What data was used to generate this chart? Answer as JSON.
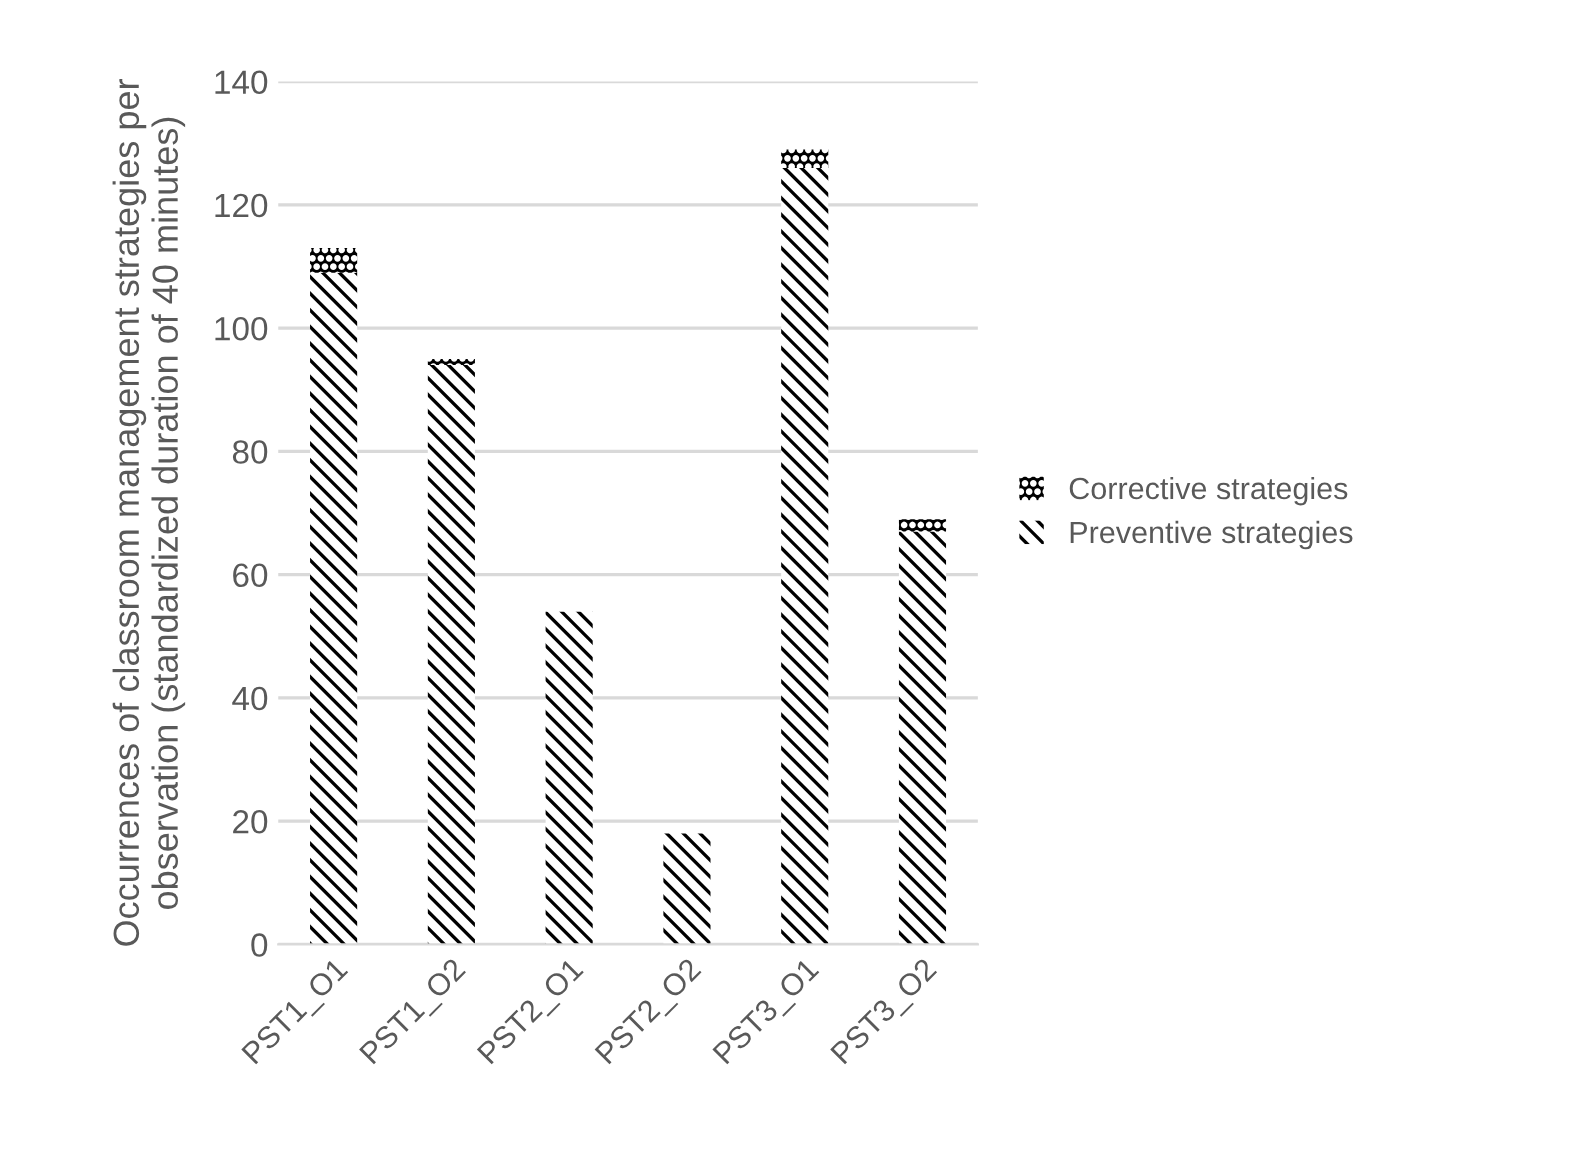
{
  "chart_data": {
    "type": "bar",
    "stacked": true,
    "ylabel": "Occurrences of classroom management strategies per observation (standardized duration of 40 minutes)",
    "categories": [
      "PST1_O1",
      "PST1_O2",
      "PST2_O1",
      "PST2_O2",
      "PST3_O1",
      "PST3_O2"
    ],
    "series": [
      {
        "name": "Preventive strategies",
        "color": "#000000",
        "values": [
          109,
          94,
          54,
          18,
          126,
          67
        ]
      },
      {
        "name": "Corrective strategies",
        "color": "#000000",
        "values": [
          4,
          1,
          0,
          0,
          3,
          2
        ]
      }
    ],
    "ylim": [
      0,
      140
    ],
    "yticks": [
      0,
      20,
      40,
      60,
      80,
      100,
      120,
      140
    ],
    "grid": "y",
    "legend": "right"
  }
}
